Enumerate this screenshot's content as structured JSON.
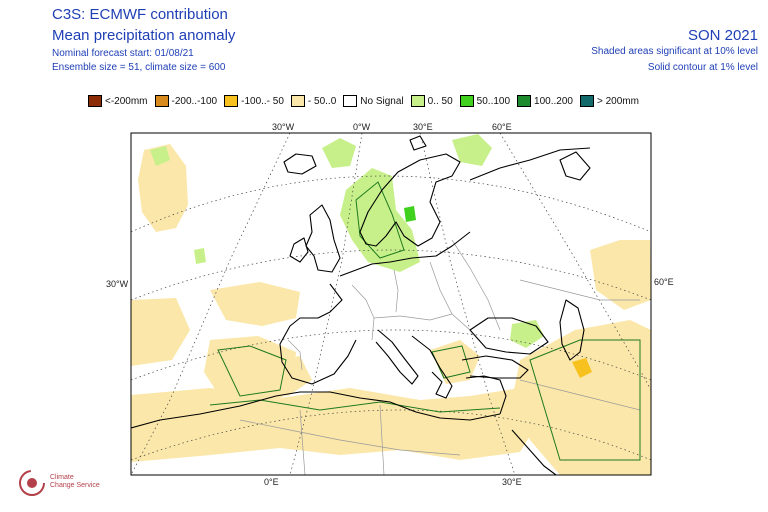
{
  "header": {
    "title": "C3S: ECMWF contribution",
    "subtitle": "Mean precipitation anomaly",
    "forecast_start": "Nominal forecast start: 01/08/21",
    "ensemble": "Ensemble size = 51, climate size = 600",
    "season": "SON 2021",
    "significance_shaded": "Shaded areas significant at 10% level",
    "significance_contour": "Solid contour at 1% level"
  },
  "legend": [
    {
      "label": "<-200mm",
      "color": "#8b2c06"
    },
    {
      "label": "-200..-100",
      "color": "#d88a1d"
    },
    {
      "label": "-100..- 50",
      "color": "#f7c21f"
    },
    {
      "label": "- 50..0",
      "color": "#fbe7a9"
    },
    {
      "label": "No Signal",
      "color": "#ffffff"
    },
    {
      "label": "0.. 50",
      "color": "#c7f08a"
    },
    {
      "label": "50..100",
      "color": "#3fd11d"
    },
    {
      "label": "100..200",
      "color": "#1d8a2e"
    },
    {
      "label": "> 200mm",
      "color": "#126a6a"
    }
  ],
  "map": {
    "top_labels": [
      "30°W",
      "0°W",
      "30°E",
      "60°E"
    ],
    "bottom_labels": [
      "0°E",
      "30°E"
    ],
    "left_label": "30°W",
    "right_label": "60°E",
    "colors": {
      "frame": "#000000",
      "coast": "#000000",
      "border": "#9a9a9a",
      "contour": "#1f7a1f",
      "graticule": "#444444"
    }
  },
  "logo": {
    "line1": "Climate",
    "line2": "Change Service"
  }
}
